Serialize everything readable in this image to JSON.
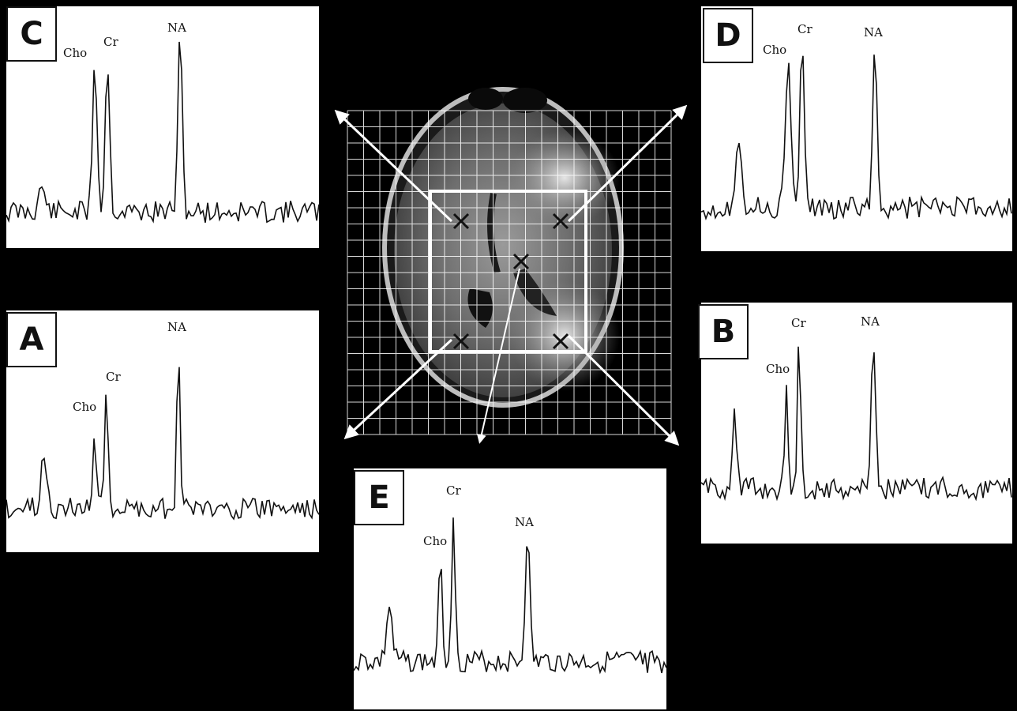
{
  "panels": [
    {
      "id": "C",
      "label": "C",
      "peaks": [
        "Cho",
        "Cr",
        "NA"
      ]
    },
    {
      "id": "A",
      "label": "A",
      "peaks": [
        "Cho",
        "Cr",
        "NA"
      ]
    },
    {
      "id": "D",
      "label": "D",
      "peaks": [
        "Cho",
        "Cr",
        "NA"
      ]
    },
    {
      "id": "B",
      "label": "B",
      "peaks": [
        "Cho",
        "Cr",
        "NA"
      ]
    },
    {
      "id": "E",
      "label": "E",
      "peaks": [
        "Cho",
        "Cr",
        "NA"
      ]
    }
  ],
  "colors": {
    "background": "#000000",
    "panel": "#ffffff",
    "trace": "#111111",
    "grid": "#ffffff"
  }
}
